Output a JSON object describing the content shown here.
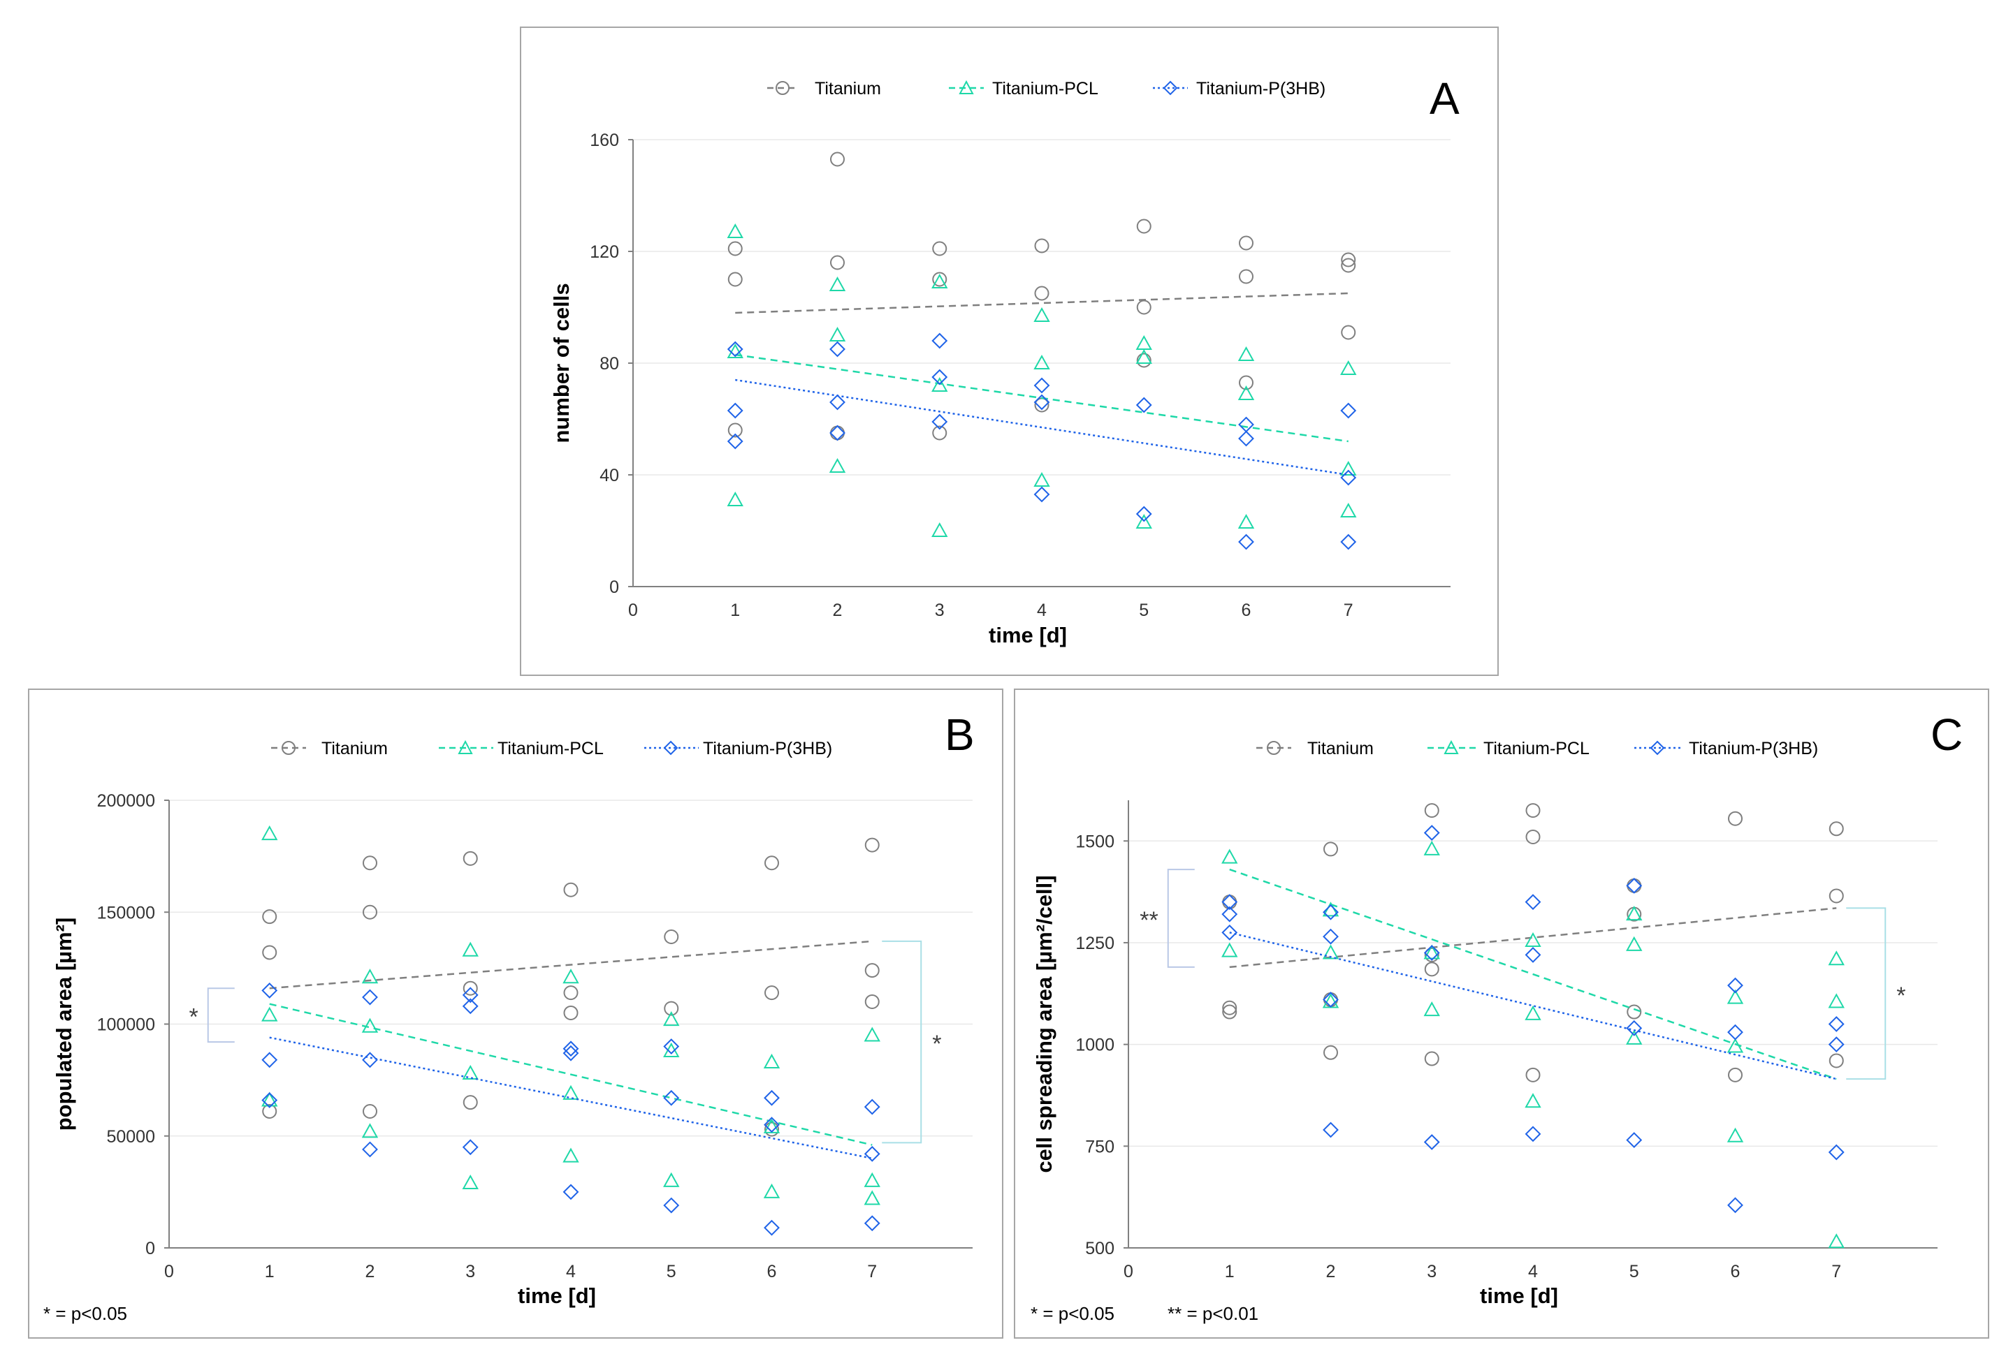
{
  "figure": {
    "legend": [
      "Titanium",
      "Titanium-PCL",
      "Titanium-P(3HB)"
    ],
    "colors": {
      "Titanium": "#7f7f7f",
      "Titanium-PCL": "#1ed8a8",
      "Titanium-P(3HB)": "#1f63e8"
    },
    "footnotes": {
      "single": "* = p<0.05",
      "double": "** = p<0.01"
    }
  },
  "chart_data": [
    {
      "panel": "A",
      "type": "scatter",
      "title": "",
      "xlabel": "time [d]",
      "ylabel": "number of cells",
      "xlim": [
        0,
        8
      ],
      "ylim": [
        0,
        160
      ],
      "xticks": [
        0,
        1,
        2,
        3,
        4,
        5,
        6,
        7
      ],
      "yticks": [
        0,
        40,
        80,
        120,
        160
      ],
      "grid": true,
      "legend_position": "top",
      "series": [
        {
          "name": "Titanium",
          "marker": "circle",
          "line": "dashed",
          "points": [
            [
              1,
              121
            ],
            [
              1,
              110
            ],
            [
              1,
              56
            ],
            [
              2,
              153
            ],
            [
              2,
              116
            ],
            [
              2,
              55
            ],
            [
              3,
              121
            ],
            [
              3,
              110
            ],
            [
              3,
              55
            ],
            [
              4,
              122
            ],
            [
              4,
              105
            ],
            [
              4,
              65
            ],
            [
              5,
              129
            ],
            [
              5,
              100
            ],
            [
              5,
              81
            ],
            [
              6,
              123
            ],
            [
              6,
              111
            ],
            [
              6,
              73
            ],
            [
              7,
              117
            ],
            [
              7,
              115
            ],
            [
              7,
              91
            ]
          ],
          "trend": [
            [
              1,
              98
            ],
            [
              7,
              105
            ]
          ]
        },
        {
          "name": "Titanium-PCL",
          "marker": "triangle",
          "line": "dashed",
          "points": [
            [
              1,
              127
            ],
            [
              1,
              84
            ],
            [
              1,
              31
            ],
            [
              2,
              108
            ],
            [
              2,
              90
            ],
            [
              2,
              43
            ],
            [
              3,
              109
            ],
            [
              3,
              72
            ],
            [
              3,
              20
            ],
            [
              4,
              97
            ],
            [
              4,
              80
            ],
            [
              4,
              38
            ],
            [
              5,
              87
            ],
            [
              5,
              82
            ],
            [
              5,
              23
            ],
            [
              6,
              83
            ],
            [
              6,
              69
            ],
            [
              6,
              23
            ],
            [
              7,
              78
            ],
            [
              7,
              42
            ],
            [
              7,
              27
            ]
          ],
          "trend": [
            [
              1,
              83
            ],
            [
              7,
              52
            ]
          ]
        },
        {
          "name": "Titanium-P(3HB)",
          "marker": "diamond",
          "line": "dotted",
          "points": [
            [
              1,
              85
            ],
            [
              1,
              63
            ],
            [
              1,
              52
            ],
            [
              2,
              85
            ],
            [
              2,
              66
            ],
            [
              2,
              55
            ],
            [
              3,
              88
            ],
            [
              3,
              75
            ],
            [
              3,
              59
            ],
            [
              4,
              72
            ],
            [
              4,
              66
            ],
            [
              4,
              33
            ],
            [
              5,
              65
            ],
            [
              5,
              26
            ],
            [
              6,
              58
            ],
            [
              6,
              53
            ],
            [
              6,
              16
            ],
            [
              7,
              63
            ],
            [
              7,
              39
            ],
            [
              7,
              16
            ]
          ],
          "trend": [
            [
              1,
              74
            ],
            [
              7,
              40
            ]
          ]
        }
      ],
      "annotations": []
    },
    {
      "panel": "B",
      "type": "scatter",
      "title": "",
      "xlabel": "time [d]",
      "ylabel": "populated area [µm²]",
      "xlim": [
        0,
        8
      ],
      "ylim": [
        0,
        200000
      ],
      "xticks": [
        0,
        1,
        2,
        3,
        4,
        5,
        6,
        7
      ],
      "yticks": [
        0,
        50000,
        100000,
        150000,
        200000
      ],
      "grid": true,
      "legend_position": "top",
      "series": [
        {
          "name": "Titanium",
          "marker": "circle",
          "line": "dashed",
          "points": [
            [
              1,
              148000
            ],
            [
              1,
              132000
            ],
            [
              1,
              61000
            ],
            [
              2,
              172000
            ],
            [
              2,
              150000
            ],
            [
              2,
              61000
            ],
            [
              3,
              174000
            ],
            [
              3,
              116000
            ],
            [
              3,
              65000
            ],
            [
              4,
              160000
            ],
            [
              4,
              114000
            ],
            [
              4,
              105000
            ],
            [
              5,
              139000
            ],
            [
              5,
              107000
            ],
            [
              6,
              172000
            ],
            [
              6,
              114000
            ],
            [
              6,
              53000
            ],
            [
              7,
              180000
            ],
            [
              7,
              124000
            ],
            [
              7,
              110000
            ]
          ],
          "trend": [
            [
              1,
              116000
            ],
            [
              7,
              137000
            ]
          ]
        },
        {
          "name": "Titanium-PCL",
          "marker": "triangle",
          "line": "dashed",
          "points": [
            [
              1,
              185000
            ],
            [
              1,
              104000
            ],
            [
              1,
              66000
            ],
            [
              2,
              121000
            ],
            [
              2,
              99000
            ],
            [
              2,
              52000
            ],
            [
              3,
              133000
            ],
            [
              3,
              78000
            ],
            [
              3,
              29000
            ],
            [
              4,
              121000
            ],
            [
              4,
              69000
            ],
            [
              4,
              41000
            ],
            [
              5,
              102000
            ],
            [
              5,
              88000
            ],
            [
              5,
              30000
            ],
            [
              6,
              83000
            ],
            [
              6,
              54000
            ],
            [
              6,
              25000
            ],
            [
              7,
              95000
            ],
            [
              7,
              30000
            ],
            [
              7,
              22000
            ]
          ],
          "trend": [
            [
              1,
              109000
            ],
            [
              7,
              46000
            ]
          ]
        },
        {
          "name": "Titanium-P(3HB)",
          "marker": "diamond",
          "line": "dotted",
          "points": [
            [
              1,
              115000
            ],
            [
              1,
              84000
            ],
            [
              1,
              66000
            ],
            [
              2,
              112000
            ],
            [
              2,
              84000
            ],
            [
              2,
              44000
            ],
            [
              3,
              113000
            ],
            [
              3,
              108000
            ],
            [
              3,
              45000
            ],
            [
              4,
              89000
            ],
            [
              4,
              87000
            ],
            [
              4,
              25000
            ],
            [
              5,
              90000
            ],
            [
              5,
              67000
            ],
            [
              5,
              19000
            ],
            [
              6,
              67000
            ],
            [
              6,
              55000
            ],
            [
              6,
              9000
            ],
            [
              7,
              63000
            ],
            [
              7,
              42000
            ],
            [
              7,
              11000
            ]
          ],
          "trend": [
            [
              1,
              94000
            ],
            [
              7,
              40000
            ]
          ]
        }
      ],
      "annotations": [
        {
          "label": "*",
          "day": 1,
          "range": [
            92000,
            116000
          ],
          "side": "left"
        },
        {
          "label": "*",
          "day": 7,
          "range": [
            47000,
            137000
          ],
          "side": "right"
        }
      ]
    },
    {
      "panel": "C",
      "type": "scatter",
      "title": "",
      "xlabel": "time [d]",
      "ylabel": "cell spreading area [µm²/cell]",
      "xlim": [
        0,
        8
      ],
      "ylim": [
        500,
        1600
      ],
      "xticks": [
        0,
        1,
        2,
        3,
        4,
        5,
        6,
        7
      ],
      "yticks": [
        500,
        750,
        1000,
        1250,
        1500
      ],
      "grid": true,
      "legend_position": "top",
      "series": [
        {
          "name": "Titanium",
          "marker": "circle",
          "line": "dashed",
          "points": [
            [
              1,
              1350
            ],
            [
              1,
              1090
            ],
            [
              1,
              1080
            ],
            [
              2,
              1480
            ],
            [
              2,
              1110
            ],
            [
              2,
              980
            ],
            [
              3,
              1575
            ],
            [
              3,
              1220
            ],
            [
              3,
              1185
            ],
            [
              3,
              965
            ],
            [
              4,
              1575
            ],
            [
              4,
              1510
            ],
            [
              4,
              925
            ],
            [
              5,
              1390
            ],
            [
              5,
              1320
            ],
            [
              5,
              1080
            ],
            [
              6,
              1555
            ],
            [
              6,
              925
            ],
            [
              7,
              1530
            ],
            [
              7,
              1365
            ],
            [
              7,
              960
            ]
          ],
          "trend": [
            [
              1,
              1190
            ],
            [
              7,
              1335
            ]
          ]
        },
        {
          "name": "Titanium-PCL",
          "marker": "triangle",
          "line": "dashed",
          "points": [
            [
              1,
              1460
            ],
            [
              1,
              1230
            ],
            [
              2,
              1330
            ],
            [
              2,
              1225
            ],
            [
              2,
              1105
            ],
            [
              3,
              1480
            ],
            [
              3,
              1225
            ],
            [
              3,
              1085
            ],
            [
              4,
              1255
            ],
            [
              4,
              1075
            ],
            [
              4,
              860
            ],
            [
              5,
              1320
            ],
            [
              5,
              1245
            ],
            [
              5,
              1015
            ],
            [
              6,
              1115
            ],
            [
              6,
              995
            ],
            [
              6,
              775
            ],
            [
              7,
              1210
            ],
            [
              7,
              1105
            ],
            [
              7,
              515
            ]
          ],
          "trend": [
            [
              1,
              1430
            ],
            [
              7,
              915
            ]
          ]
        },
        {
          "name": "Titanium-P(3HB)",
          "marker": "diamond",
          "line": "dotted",
          "points": [
            [
              1,
              1350
            ],
            [
              1,
              1320
            ],
            [
              1,
              1275
            ],
            [
              2,
              1325
            ],
            [
              2,
              1265
            ],
            [
              2,
              1110
            ],
            [
              2,
              790
            ],
            [
              3,
              1520
            ],
            [
              3,
              1225
            ],
            [
              3,
              760
            ],
            [
              4,
              1350
            ],
            [
              4,
              1220
            ],
            [
              4,
              780
            ],
            [
              5,
              1390
            ],
            [
              5,
              1040
            ],
            [
              5,
              765
            ],
            [
              6,
              1145
            ],
            [
              6,
              1030
            ],
            [
              6,
              605
            ],
            [
              7,
              1050
            ],
            [
              7,
              1000
            ],
            [
              7,
              735
            ]
          ],
          "trend": [
            [
              1,
              1275
            ],
            [
              7,
              915
            ]
          ]
        }
      ],
      "annotations": [
        {
          "label": "**",
          "day": 1,
          "range": [
            1190,
            1430
          ],
          "side": "left"
        },
        {
          "label": "*",
          "day": 7,
          "range": [
            915,
            1335
          ],
          "side": "right"
        }
      ]
    }
  ]
}
